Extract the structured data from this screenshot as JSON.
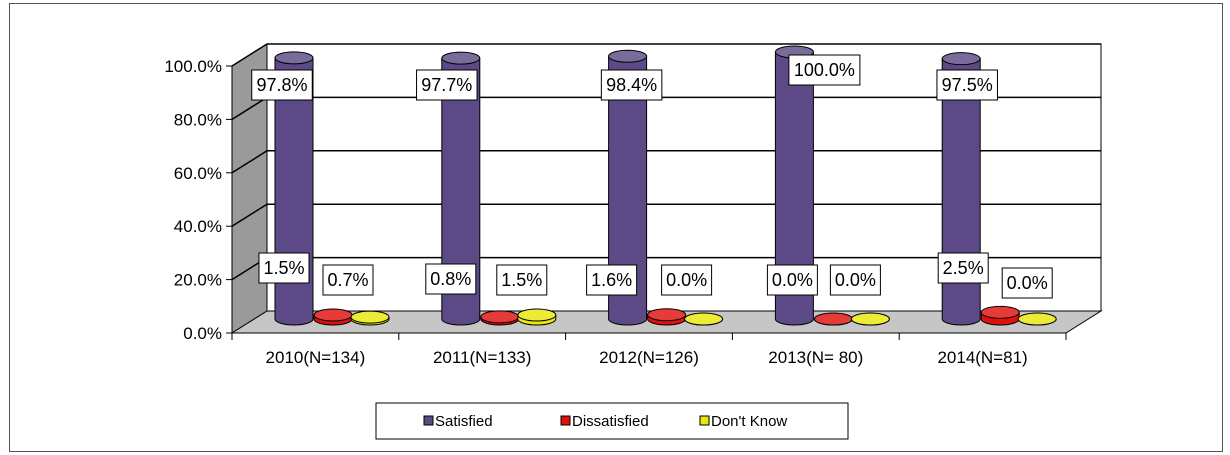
{
  "chart_data": {
    "type": "bar",
    "style": "3d-cylinder",
    "title": "",
    "xlabel": "",
    "ylabel": "",
    "ylim": [
      0,
      100
    ],
    "y_ticks": [
      "0.0%",
      "20.0%",
      "40.0%",
      "60.0%",
      "80.0%",
      "100.0%"
    ],
    "categories": [
      "2010(N=134)",
      "2011(N=133)",
      "2012(N=126)",
      "2013(N= 80)",
      "2014(N=81)"
    ],
    "series": [
      {
        "name": "Satisfied",
        "color": "#5B4A86",
        "values": [
          97.8,
          97.7,
          98.4,
          100.0,
          97.5
        ],
        "labels": [
          "97.8%",
          "97.7%",
          "98.4%",
          "100.0%",
          "97.5%"
        ]
      },
      {
        "name": "Dissatisfied",
        "color": "#E0100E",
        "values": [
          1.5,
          0.8,
          1.6,
          0.0,
          2.5
        ],
        "labels": [
          "1.5%",
          "0.8%",
          "1.6%",
          "0.0%",
          "2.5%"
        ]
      },
      {
        "name": "Don't Know",
        "color": "#E8E80A",
        "values": [
          0.7,
          1.5,
          0.0,
          0.0,
          0.0
        ],
        "labels": [
          "0.7%",
          "1.5%",
          "0.0%",
          "0.0%",
          "0.0%"
        ]
      }
    ],
    "grid": true,
    "legend_position": "bottom"
  }
}
